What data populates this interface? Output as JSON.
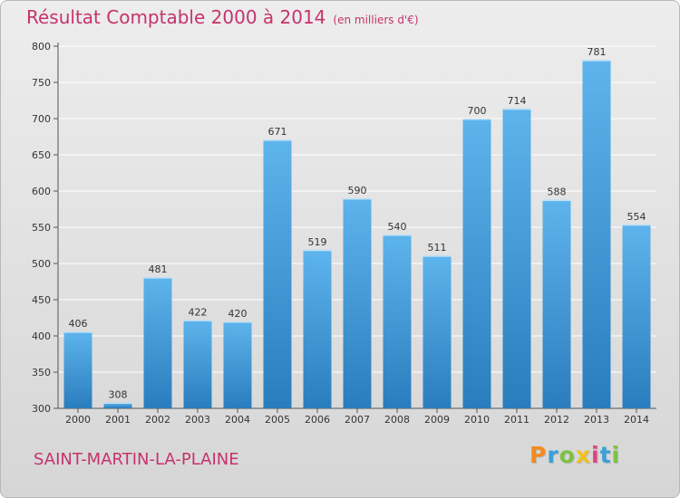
{
  "title": "Résultat Comptable 2000 à 2014",
  "subtitle": "(en milliers d'€)",
  "commune": "SAINT-MARTIN-LA-PLAINE",
  "brand": {
    "letters": [
      "P",
      "r",
      "o",
      "x",
      "i",
      "t",
      "i"
    ],
    "colors": [
      "#f28b1a",
      "#3aa0d8",
      "#7cc242",
      "#f2c21a",
      "#e0457b",
      "#3aa0d8",
      "#7cc242"
    ]
  },
  "colors": {
    "title": "#c6336b",
    "bar_light": "#5eb4ec",
    "bar_dark": "#2a7dbd",
    "grid": "#ffffff"
  },
  "chart_data": {
    "type": "bar",
    "categories": [
      "2000",
      "2001",
      "2002",
      "2003",
      "2004",
      "2005",
      "2006",
      "2007",
      "2008",
      "2009",
      "2010",
      "2011",
      "2012",
      "2013",
      "2014"
    ],
    "values": [
      406,
      308,
      481,
      422,
      420,
      671,
      519,
      590,
      540,
      511,
      700,
      714,
      588,
      781,
      554
    ],
    "ylim": [
      300,
      800
    ],
    "yticks": [
      "300",
      "350",
      "400",
      "450",
      "500",
      "550",
      "600",
      "650",
      "700",
      "750",
      "800"
    ],
    "grid": true
  }
}
